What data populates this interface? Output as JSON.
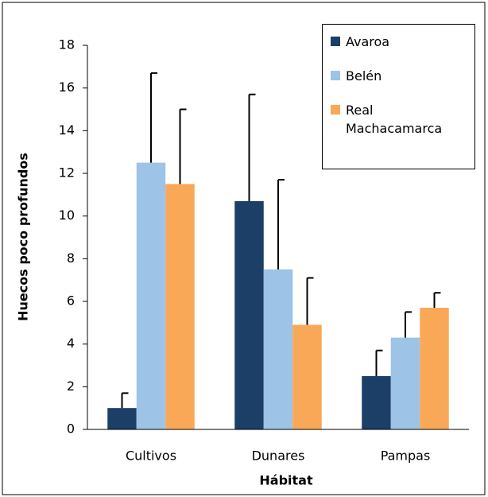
{
  "chart_data": {
    "type": "bar",
    "y_label": "Huecos poco profundos",
    "x_label": "Hábitat",
    "categories": [
      "Cultivos",
      "Dunares",
      "Pampas"
    ],
    "series": [
      {
        "name": "Avaroa",
        "color": "#1b3f66",
        "values": [
          1.0,
          10.7,
          2.5
        ],
        "errors": [
          0.7,
          5.0,
          1.2
        ]
      },
      {
        "name": "Belén",
        "color": "#9dc3e6",
        "values": [
          12.5,
          7.5,
          4.3
        ],
        "errors": [
          4.2,
          4.2,
          1.2
        ]
      },
      {
        "name": "Real Machacamarca",
        "color": "#f9a857",
        "values": [
          11.5,
          4.9,
          5.7
        ],
        "errors": [
          3.5,
          2.2,
          0.7
        ]
      }
    ],
    "ylim": [
      0,
      18
    ],
    "yticks": [
      0,
      2,
      4,
      6,
      8,
      10,
      12,
      14,
      16,
      18
    ],
    "legend": "upper right"
  }
}
